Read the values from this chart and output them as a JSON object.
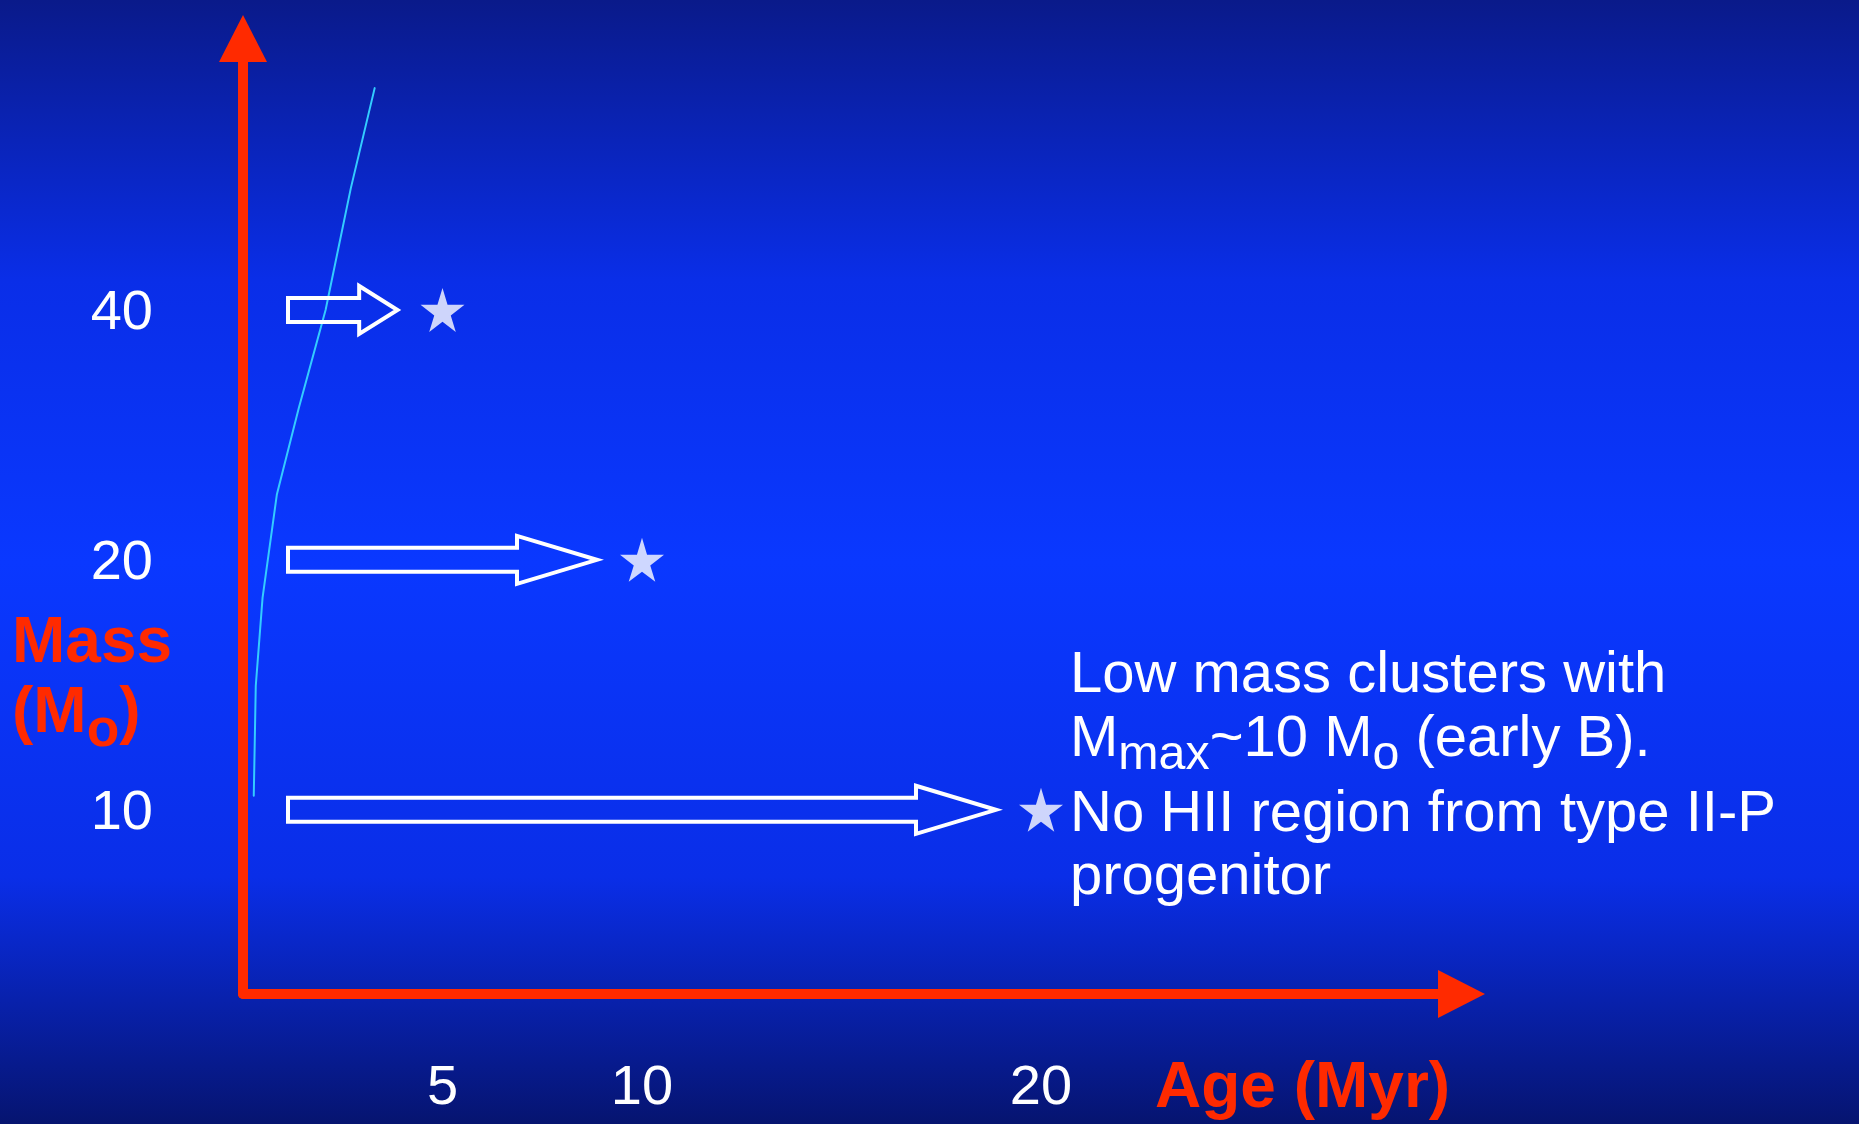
{
  "chart_data": {
    "type": "scatter",
    "xlabel": "Age (Myr)",
    "ylabel": "Mass (M$_{o}$)",
    "log": "y",
    "xlim": [
      0,
      30
    ],
    "ylim": [
      6,
      80
    ],
    "xticks": [
      5,
      10,
      20
    ],
    "yticks": [
      10,
      20,
      40
    ],
    "marker": "star",
    "series": [
      {
        "color": "#ffffff",
        "x": [
          5,
          10,
          20
        ],
        "values": [
          40,
          20,
          10
        ]
      },
      {
        "type": "line",
        "color": "#33ccff",
        "marker": "none",
        "x": [
          0.27,
          0.32,
          0.49,
          0.85,
          1.4,
          2.07,
          2.7,
          3.3
        ],
        "values": [
          10.4,
          14.1,
          18,
          24,
          30.5,
          40,
          56,
          74
        ]
      }
    ],
    "annotations": [
      "Low mass clusters with M$_{max}$~10 M$_{o}$ (early B).",
      "No HII region from type II-P progenitor"
    ]
  }
}
